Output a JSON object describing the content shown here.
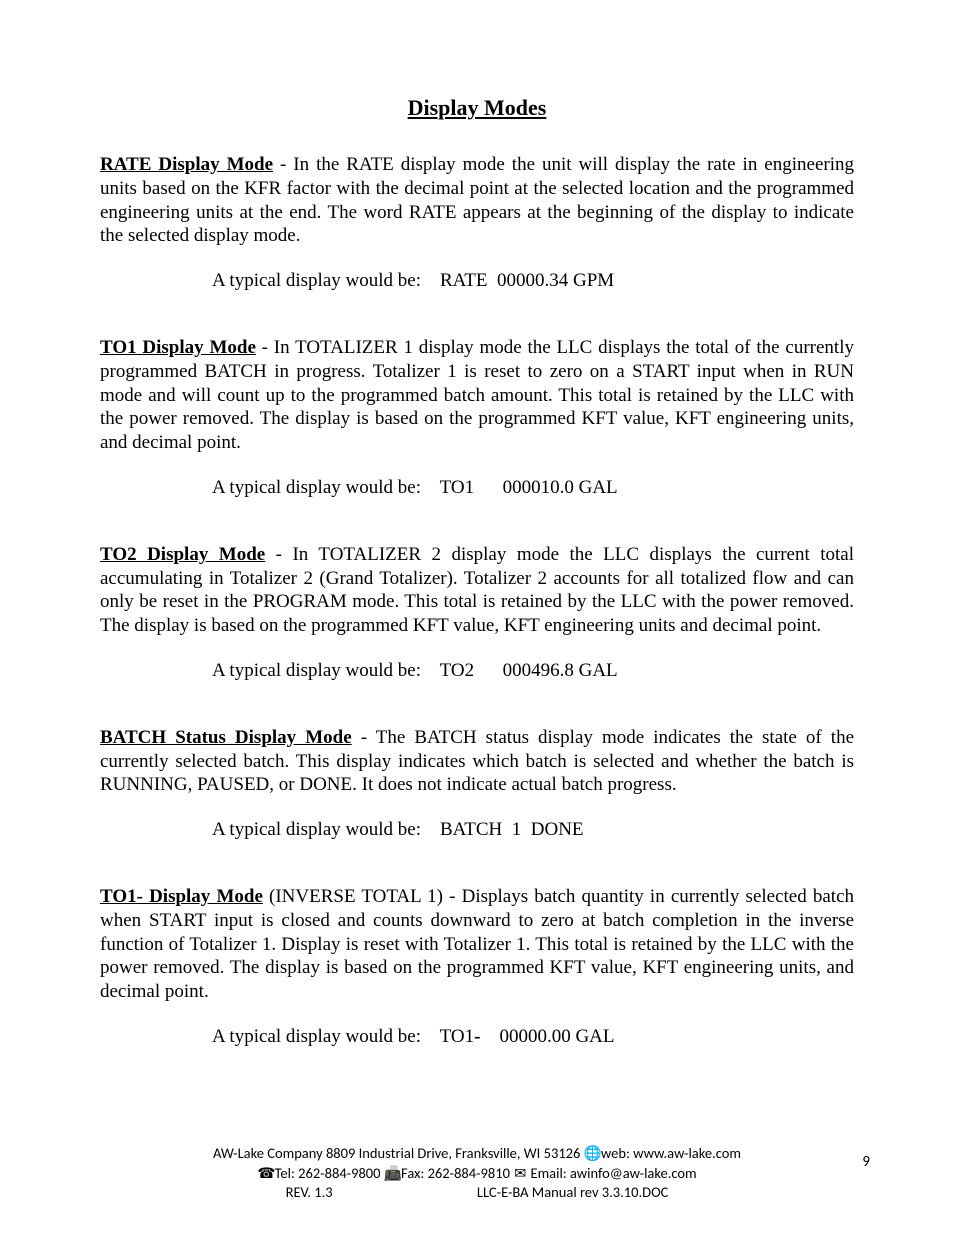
{
  "title": "Display Modes",
  "sections": [
    {
      "heading": "RATE Display Mode",
      "leading_space": " ",
      "body": " - In the RATE display mode the unit will display the rate in engineering units based on the KFR factor with the decimal point at the selected location and the programmed engineering units at the end. The word RATE appears at the beginning of the display to indicate the selected display mode.",
      "example": "A typical display would be:    RATE  00000.34 GPM"
    },
    {
      "heading": "TO1 Display Mode",
      "leading_space": "",
      "body": " - In TOTALIZER 1 display mode the LLC displays the total of the currently programmed BATCH in progress. Totalizer 1 is reset to zero on a START input when in RUN mode and will count up to the programmed batch amount.  This total is retained by the LLC with the power removed. The display is based on the programmed KFT value, KFT engineering units, and decimal point.",
      "example": "A typical display would be:    TO1      000010.0 GAL"
    },
    {
      "heading": "TO2 Display Mode",
      "leading_space": "",
      "body": " - In TOTALIZER 2 display mode the LLC displays the current total accumulating in Totalizer 2 (Grand Totalizer).  Totalizer 2 accounts for all totalized flow and can only be reset in the PROGRAM mode. This total is retained by the LLC with the power removed.  The display is based on the programmed KFT value, KFT engineering units and decimal point.",
      "example": "A typical display would be:    TO2      000496.8 GAL"
    },
    {
      "heading": "BATCH Status Display Mode",
      "leading_space": "",
      "body": " - The BATCH status display mode indicates the state of the currently selected batch.  This display indicates which batch is selected and whether the batch is RUNNING, PAUSED, or DONE. It does not indicate actual batch progress.",
      "example": "A typical display would be:    BATCH  1  DONE"
    },
    {
      "heading": "TO1- Display Mode",
      "leading_space": "",
      "body": " (INVERSE TOTAL 1) - Displays batch quantity in currently selected batch when START input is closed and counts downward to zero at batch completion in the inverse function of Totalizer 1. Display is reset with Totalizer 1. This total is retained by the LLC with the power removed. The display is based on the programmed KFT value, KFT engineering units, and decimal point.",
      "example_prefix": "A typical display would be:    TO1",
      "example_bold": "-",
      "example_suffix": "    00000.00 GAL"
    }
  ],
  "footer": {
    "company": "AW-Lake Company 8809 Industrial Drive, Franksville, WI 53126",
    "web_label": " web: www.aw-lake.com",
    "tel_label": " Tel:  262-884-9800 ",
    "fax_label": " Fax:  262-884-9810 ",
    "email_label": " Email: awinfo@aw-lake.com",
    "rev_left": "REV. 1.3",
    "rev_right": "LLC-E-BA Manual rev 3.3.10.DOC",
    "page_number": "9",
    "icons": {
      "globe": "🌐",
      "phone": "☎",
      "fax": "📠",
      "email": "✉"
    }
  }
}
